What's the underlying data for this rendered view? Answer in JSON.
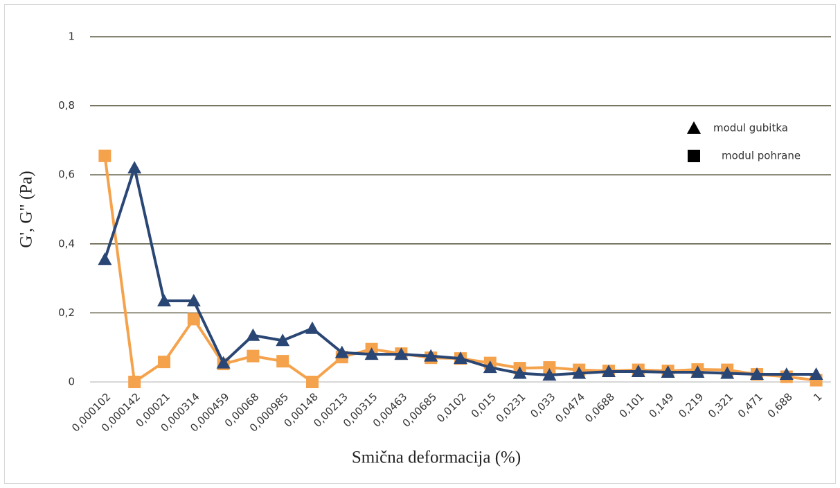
{
  "chart_data": {
    "type": "line",
    "xlabel": "Smična deformacija (%)",
    "ylabel": "G', G\" (Pa)",
    "categories": [
      "0,000102",
      "0,000142",
      "0,00021",
      "0,000314",
      "0,000459",
      "0,00068",
      "0,000985",
      "0,00148",
      "0,00213",
      "0,00315",
      "0,00463",
      "0,00685",
      "0,0102",
      "0,015",
      "0,0231",
      "0,033",
      "0,0474",
      "0,0688",
      "0,101",
      "0,149",
      "0,219",
      "0,321",
      "0,471",
      "0,688",
      "1"
    ],
    "series": [
      {
        "name": "modul gubitka",
        "color": "#2a4674",
        "marker": "triangle",
        "values": [
          0.355,
          0.62,
          0.235,
          0.235,
          0.055,
          0.135,
          0.12,
          0.155,
          0.085,
          0.08,
          0.08,
          0.075,
          0.068,
          0.042,
          0.025,
          0.02,
          0.025,
          0.03,
          0.03,
          0.028,
          0.028,
          0.025,
          0.022,
          0.022,
          0.022
        ]
      },
      {
        "name": "modul pohrane",
        "color": "#f5a24c",
        "marker": "square",
        "values": [
          0.655,
          0,
          0.058,
          0.182,
          0.052,
          0.075,
          0.06,
          0,
          0.072,
          0.095,
          0.082,
          0.07,
          0.068,
          0.055,
          0.04,
          0.042,
          0.035,
          0.032,
          0.035,
          0.032,
          0.036,
          0.035,
          0.022,
          0.015,
          0.005
        ]
      }
    ],
    "ylim": [
      0,
      1
    ],
    "yticks": [
      0,
      {
        "value": 0.2,
        "label": "0,2"
      },
      {
        "value": 0.4,
        "label": "0,4"
      },
      {
        "value": 0.6,
        "label": "0,6"
      },
      {
        "value": 0.8,
        "label": "0,8"
      },
      1
    ],
    "grid": true,
    "legend": "right",
    "legend_marker_color": "#000000"
  }
}
